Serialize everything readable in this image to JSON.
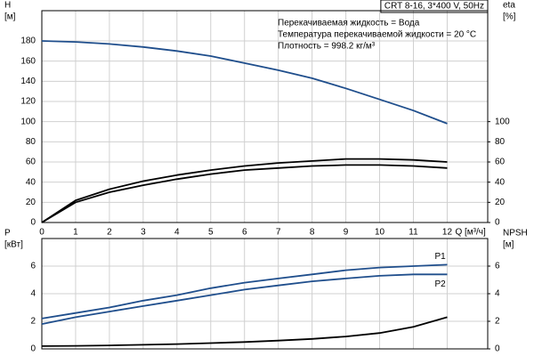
{
  "chart_data": [
    {
      "type": "line",
      "title": "CRT 8-16, 3*400 V, 50Hz",
      "annotations": [
        "Перекачиваемая жидкость = Вода",
        "Температура перекачиваемой жидкости = 20 °C",
        "Плотность = 998.2 кг/м³"
      ],
      "ylabel": [
        "H",
        "[м]"
      ],
      "y2label": [
        "eta",
        "[%]"
      ],
      "xlabel": "Q [м³/ч]",
      "x": [
        0,
        1,
        2,
        3,
        4,
        5,
        6,
        7,
        8,
        9,
        10,
        11,
        12
      ],
      "xlim": [
        0,
        13.2
      ],
      "xticks": [
        0,
        1,
        2,
        3,
        4,
        5,
        6,
        7,
        8,
        9,
        10,
        11,
        12
      ],
      "show_xtick_labels": true,
      "ylim": [
        0,
        210
      ],
      "yticks": [
        0,
        20,
        40,
        60,
        80,
        100,
        120,
        140,
        160,
        180
      ],
      "y2lim": [
        0,
        210
      ],
      "y2ticks": [
        0,
        20,
        40,
        60,
        80,
        100
      ],
      "grid": true,
      "series": [
        {
          "color": "#1f4e8c",
          "values": [
            180,
            179,
            177,
            174,
            170,
            165,
            158,
            151,
            143,
            133,
            122,
            111,
            98
          ]
        },
        {
          "color": "#000000",
          "axis": "y2",
          "values": [
            0,
            22,
            33,
            41,
            47,
            52,
            56,
            59,
            61,
            63,
            63,
            62,
            60
          ]
        },
        {
          "color": "#000000",
          "axis": "y2",
          "values": [
            0,
            20,
            30,
            37,
            43,
            48,
            52,
            54,
            56,
            57,
            57,
            56,
            54
          ]
        }
      ]
    },
    {
      "type": "line",
      "ylabel": [
        "P",
        "[кВт]"
      ],
      "y2label": [
        "NPSH",
        "[м]"
      ],
      "x": [
        0,
        1,
        2,
        3,
        4,
        5,
        6,
        7,
        8,
        9,
        10,
        11,
        12
      ],
      "xlim": [
        0,
        13.2
      ],
      "xticks": [
        0,
        1,
        2,
        3,
        4,
        5,
        6,
        7,
        8,
        9,
        10,
        11,
        12
      ],
      "show_xtick_labels": false,
      "ylim": [
        0,
        8
      ],
      "yticks": [
        0,
        2,
        4,
        6
      ],
      "y2lim": [
        0,
        8
      ],
      "y2ticks": [
        0,
        2,
        4,
        6
      ],
      "grid": true,
      "series": [
        {
          "name": "P1",
          "color": "#1f4e8c",
          "values": [
            2.2,
            2.6,
            3.0,
            3.5,
            3.9,
            4.4,
            4.8,
            5.1,
            5.4,
            5.7,
            5.9,
            6.0,
            6.1
          ]
        },
        {
          "name": "P2",
          "color": "#1f4e8c",
          "values": [
            1.8,
            2.3,
            2.7,
            3.1,
            3.5,
            3.9,
            4.3,
            4.6,
            4.9,
            5.1,
            5.3,
            5.4,
            5.4
          ]
        },
        {
          "color": "#000000",
          "axis": "y2",
          "values": [
            0.2,
            0.22,
            0.25,
            0.3,
            0.35,
            0.42,
            0.5,
            0.6,
            0.72,
            0.9,
            1.15,
            1.6,
            2.3
          ]
        }
      ]
    }
  ]
}
